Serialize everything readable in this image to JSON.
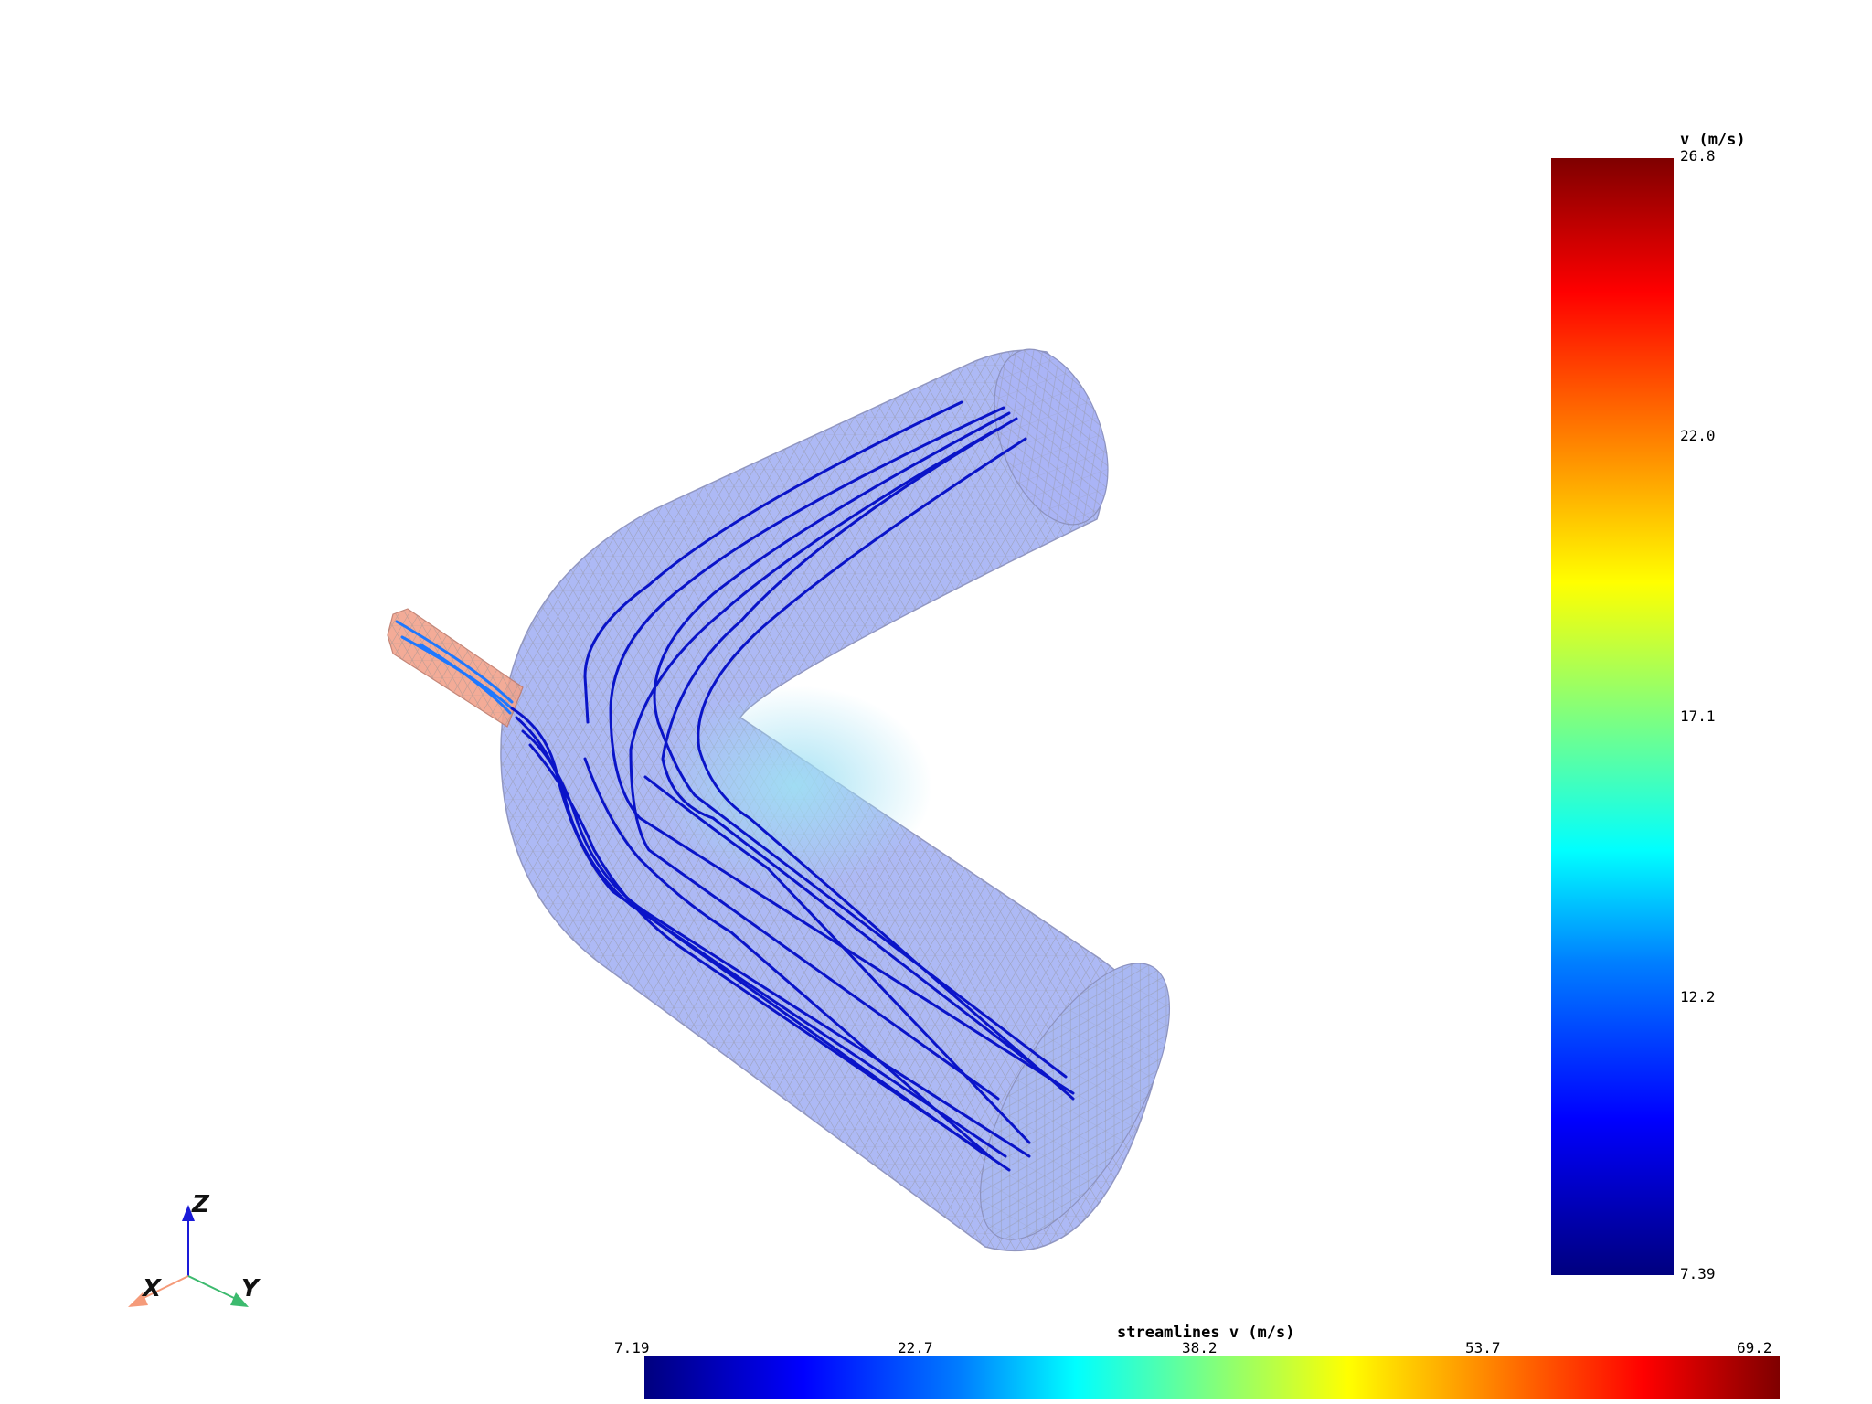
{
  "velocity_colorbar": {
    "title": "v (m/s)",
    "ticks": [
      "26.8",
      "22.0",
      "17.1",
      "12.2",
      "7.39"
    ]
  },
  "streamlines_colorbar": {
    "title": "streamlines v (m/s)",
    "ticks": [
      "7.19",
      "22.7",
      "38.2",
      "53.7",
      "69.2"
    ]
  },
  "axes_triad": {
    "x_label": "X",
    "y_label": "Y",
    "z_label": "Z"
  },
  "colors": {
    "pipe_fill": "#a9b6f5",
    "inlet_fill": "#f2a38c",
    "streamline": "#0a14c8",
    "inlet_streamline": "#1e78ff",
    "axis_x": "#f59b7a",
    "axis_y": "#3cba6e",
    "axis_z": "#1a1ad8"
  }
}
